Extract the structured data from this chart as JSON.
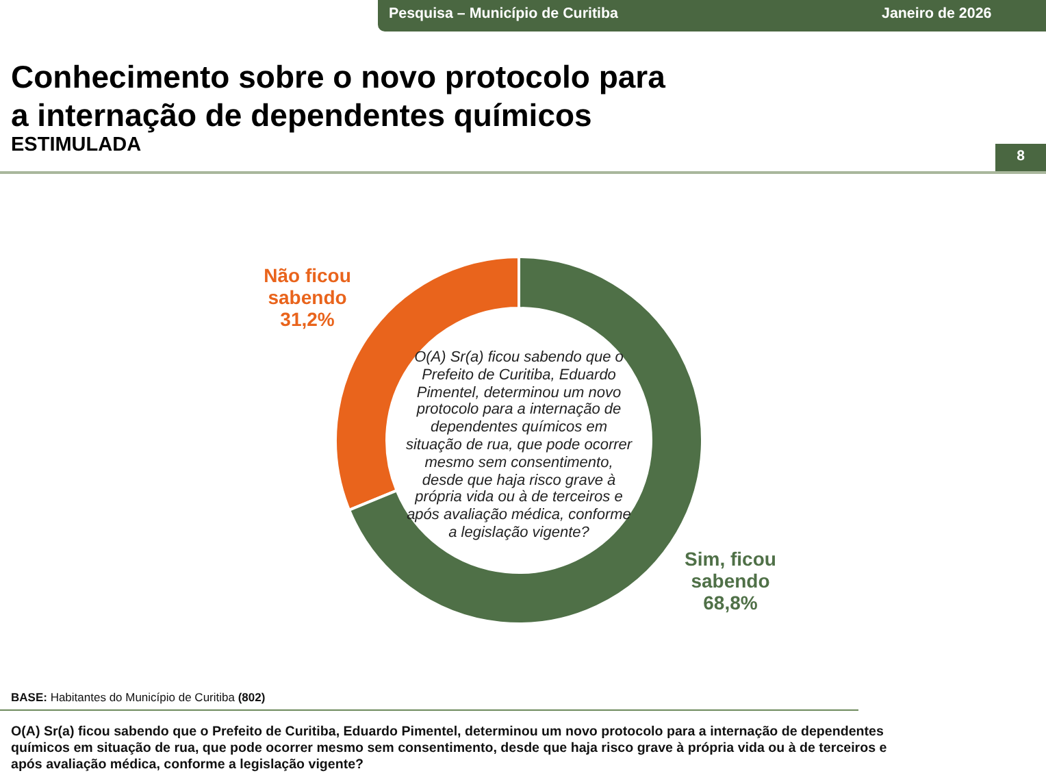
{
  "chart_data": {
    "type": "donut",
    "title": "Conhecimento sobre o novo protocolo para a internação de dependentes químicos",
    "subtitle": "ESTIMULADA",
    "categories": [
      "Não ficou sabendo",
      "Sim, ficou sabendo"
    ],
    "values": [
      31.2,
      68.8
    ],
    "colors": [
      "#e9641c",
      "#4f7047"
    ],
    "value_labels": [
      "31,2%",
      "68,8%"
    ],
    "legend": false,
    "annotations": [
      "Pesquisa – Município de Curitiba",
      "Janeiro de 2026",
      "8",
      "O(A) Sr(a) ficou sabendo que o Prefeito de Curitiba, Eduardo Pimentel, determinou um novo protocolo para a internação de dependentes químicos em situação de rua, que pode ocorrer mesmo sem consentimento, desde que haja risco grave à própria vida ou à de terceiros e após avaliação médica, conforme a legislação vigente?",
      "BASE: Habitantes do Município de Curitiba (802)",
      "O(A) Sr(a) ficou sabendo que o Prefeito de Curitiba, Eduardo Pimentel, determinou um novo protocolo para a internação de dependentes químicos em situação de rua, que pode ocorrer mesmo sem consentimento, desde que haja risco grave à própria vida ou à de terceiros e após avaliação médica, conforme a legislação vigente?"
    ]
  }
}
